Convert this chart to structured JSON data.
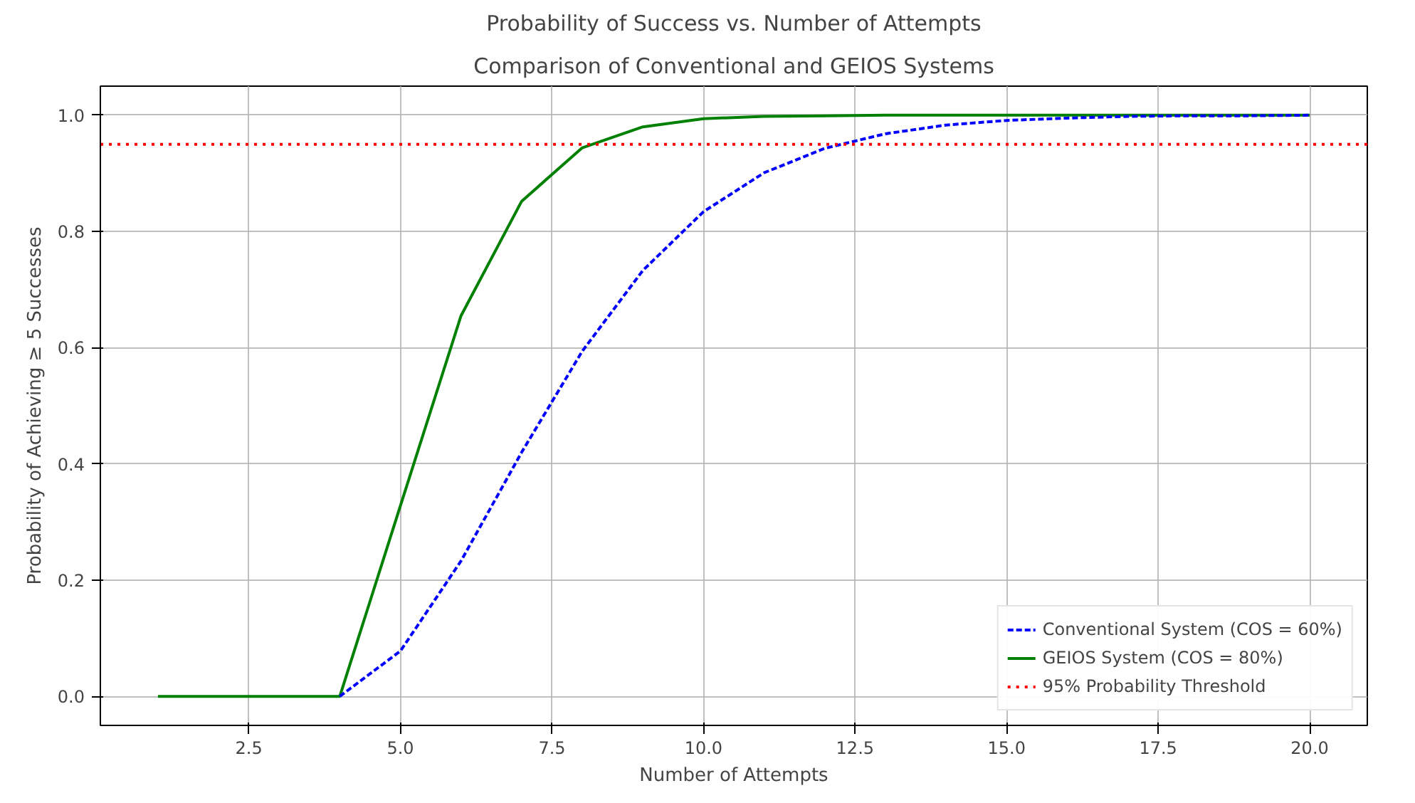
{
  "chart_data": {
    "type": "line",
    "title": "Probability of Success vs. Number of Attempts",
    "subtitle": "Comparison of Conventional and GEIOS Systems",
    "xlabel": "Number of Attempts",
    "ylabel": "Probability of Achieving ≥ 5 Successes",
    "x": [
      1,
      2,
      3,
      4,
      5,
      6,
      7,
      8,
      9,
      10,
      11,
      12,
      13,
      14,
      15,
      16,
      17,
      18,
      19,
      20
    ],
    "series": [
      {
        "name": "Conventional System (COS = 60%)",
        "color": "#0000ff",
        "line_style": "dashed",
        "x": [
          4,
          5,
          6,
          7,
          8,
          9,
          10,
          11,
          12,
          13,
          14,
          15,
          16,
          17,
          18,
          19,
          20
        ],
        "values": [
          0,
          0.078,
          0.233,
          0.42,
          0.594,
          0.733,
          0.834,
          0.901,
          0.943,
          0.968,
          0.983,
          0.991,
          0.995,
          0.998,
          0.999,
          0.999,
          1.0
        ]
      },
      {
        "name": "GEIOS System (COS = 80%)",
        "color": "#008000",
        "line_style": "solid",
        "values": [
          0,
          0,
          0,
          0,
          0.328,
          0.655,
          0.852,
          0.944,
          0.98,
          0.994,
          0.998,
          0.999,
          1.0,
          1.0,
          1.0,
          1.0,
          1.0,
          1.0,
          1.0,
          1.0
        ]
      }
    ],
    "ref_lines": [
      {
        "axis": "y",
        "value": 0.95,
        "label": "95% Probability Threshold",
        "color": "#ff0000",
        "line_style": "dotted"
      }
    ],
    "xlim": [
      0.05,
      20.95
    ],
    "ylim": [
      -0.05,
      1.05
    ],
    "xticks": [
      {
        "value": 2.5,
        "label": "2.5"
      },
      {
        "value": 5,
        "label": "5.0"
      },
      {
        "value": 7.5,
        "label": "7.5"
      },
      {
        "value": 10,
        "label": "10.0"
      },
      {
        "value": 12.5,
        "label": "12.5"
      },
      {
        "value": 15,
        "label": "15.0"
      },
      {
        "value": 17.5,
        "label": "17.5"
      },
      {
        "value": 20,
        "label": "20.0"
      }
    ],
    "yticks": [
      {
        "value": 0,
        "label": "0.0"
      },
      {
        "value": 0.2,
        "label": "0.2"
      },
      {
        "value": 0.4,
        "label": "0.4"
      },
      {
        "value": 0.6,
        "label": "0.6"
      },
      {
        "value": 0.8,
        "label": "0.8"
      },
      {
        "value": 1,
        "label": "1.0"
      }
    ],
    "grid": true,
    "legend": "bottom right",
    "marker": "none"
  }
}
